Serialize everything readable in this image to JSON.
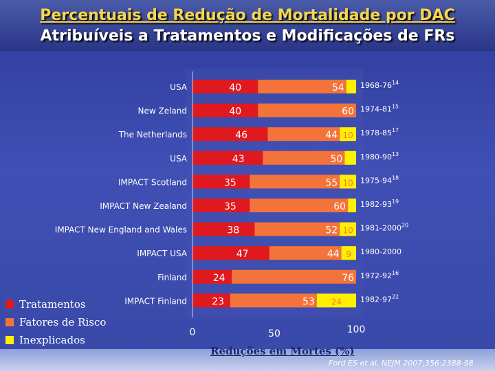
{
  "title_lines": [
    "Percentuais de Redução de Mortalidade por DAC",
    "Atribuíveis a  Tratamentos e Modificações de FRs"
  ],
  "citation": "Ford ES et al. NEJM 2007;356:2388-98",
  "colors": {
    "treatments": "#e0191f",
    "risk_factors": "#f4733a",
    "unexplained": "#fff000"
  },
  "chart_data": {
    "type": "bar",
    "orientation": "horizontal",
    "stacked": true,
    "xlabel": "Reduções em Mortes (%)",
    "xlim": [
      0,
      100
    ],
    "xticks": [
      0,
      50,
      100
    ],
    "legend_position": "bottom-left",
    "series_names": [
      "Tratamentos",
      "Fatores de  Risco",
      "Inexplicados"
    ],
    "rows": [
      {
        "label": "USA",
        "period": "1968-76",
        "ref": "14",
        "treatments": 40,
        "risk_factors": 54,
        "unexplained": 6,
        "unexplained_label": ""
      },
      {
        "label": "New Zeland",
        "period": "1974-81",
        "ref": "15",
        "treatments": 40,
        "risk_factors": 60,
        "unexplained": 0,
        "unexplained_label": ""
      },
      {
        "label": "The Netherlands",
        "period": "1978-85",
        "ref": "17",
        "treatments": 46,
        "risk_factors": 44,
        "unexplained": 10,
        "unexplained_label": "10"
      },
      {
        "label": "USA",
        "period": "1980-90",
        "ref": "13",
        "treatments": 43,
        "risk_factors": 50,
        "unexplained": 7,
        "unexplained_label": ""
      },
      {
        "label": "IMPACT Scotland",
        "period": "1975-94",
        "ref": "18",
        "treatments": 35,
        "risk_factors": 55,
        "unexplained": 10,
        "unexplained_label": "10"
      },
      {
        "label": "IMPACT New Zealand",
        "period": "1982-93",
        "ref": "19",
        "treatments": 35,
        "risk_factors": 60,
        "unexplained": 5,
        "unexplained_label": ""
      },
      {
        "label": "IMPACT New England and Wales",
        "period": "1981-2000",
        "ref": "20",
        "treatments": 38,
        "risk_factors": 52,
        "unexplained": 10,
        "unexplained_label": "10"
      },
      {
        "label": "IMPACT USA",
        "period": "1980-2000",
        "ref": "",
        "treatments": 47,
        "risk_factors": 44,
        "unexplained": 9,
        "unexplained_label": "9"
      },
      {
        "label": "Finland",
        "period": "1972-92",
        "ref": "16",
        "treatments": 24,
        "risk_factors": 76,
        "unexplained": 0,
        "unexplained_label": ""
      },
      {
        "label": "IMPACT Finland",
        "period": "1982-97",
        "ref": "22",
        "treatments": 23,
        "risk_factors": 53,
        "unexplained": 24,
        "unexplained_label": "24"
      }
    ]
  }
}
